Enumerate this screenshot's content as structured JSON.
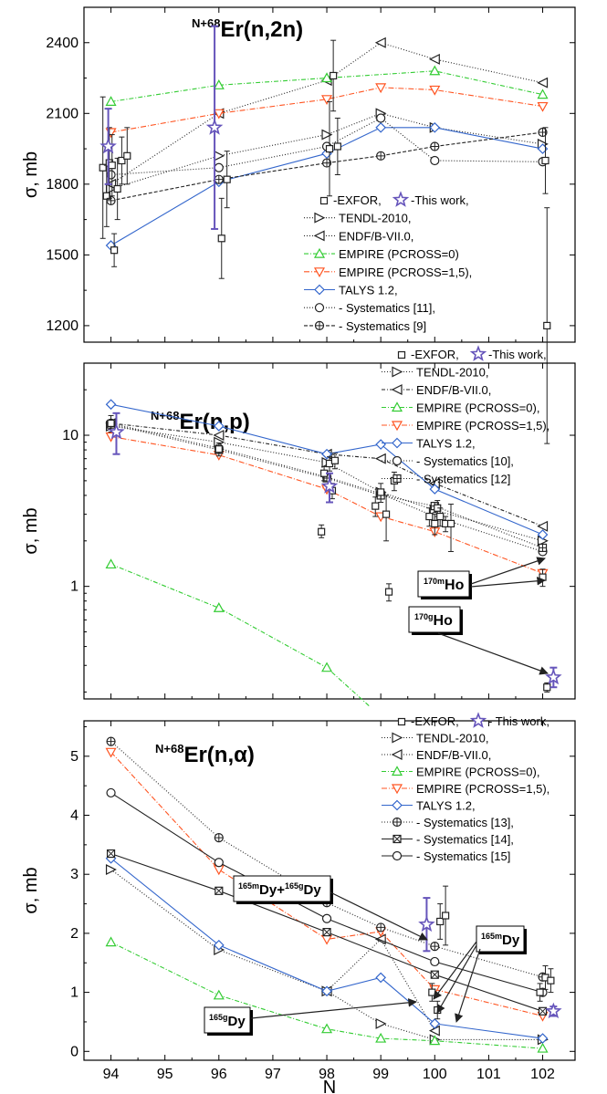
{
  "colors": {
    "black": "#222222",
    "green": "#33cc33",
    "red": "#ff5522",
    "blue": "#3366cc",
    "purple": "#6655bb"
  },
  "chart_data": [
    {
      "type": "line",
      "title_sup": "N+68",
      "title_main": "Er(n,2n)",
      "ylabel": "σ, mb",
      "xlabel": "",
      "xlim": [
        93.5,
        102.6
      ],
      "ylim": [
        1130,
        2550
      ],
      "yscale": "linear",
      "yticks": [
        1200,
        1500,
        1800,
        2100,
        2400
      ],
      "legend_position": "bottom-right",
      "series": [
        {
          "name": "TENDL-2010,",
          "color": "black",
          "marker": "tri-right",
          "dash": "1,2",
          "x": [
            94,
            96,
            98,
            99,
            100,
            102
          ],
          "y": [
            1780,
            1920,
            2010,
            2100,
            2040,
            1970
          ]
        },
        {
          "name": "ENDF/B-VII.0,",
          "color": "black",
          "marker": "tri-left",
          "dash": "1,2",
          "x": [
            94,
            96,
            98,
            99,
            100,
            102
          ],
          "y": [
            1800,
            2100,
            2240,
            2400,
            2330,
            2230
          ]
        },
        {
          "name": "EMPIRE (PCROSS=0)",
          "color": "green",
          "marker": "tri-up",
          "dash": "5,2,1,2",
          "x": [
            94,
            96,
            98,
            100,
            102
          ],
          "y": [
            2150,
            2220,
            2250,
            2280,
            2180
          ]
        },
        {
          "name": "EMPIRE (PCROSS=1,5),",
          "color": "red",
          "marker": "tri-down",
          "dash": "6,2,1,2",
          "x": [
            94,
            96,
            98,
            99,
            100,
            102
          ],
          "y": [
            2020,
            2100,
            2160,
            2210,
            2200,
            2130
          ]
        },
        {
          "name": "TALYS 1.2,",
          "color": "blue",
          "marker": "diamond",
          "dash": "",
          "x": [
            94,
            96,
            98,
            99,
            100,
            102
          ],
          "y": [
            1540,
            1810,
            1930,
            2040,
            2040,
            1950
          ]
        },
        {
          "name": "- Systematics [11],",
          "color": "black",
          "marker": "circle",
          "dash": "1,2",
          "x": [
            94,
            96,
            98,
            99,
            100,
            102
          ],
          "y": [
            1840,
            1870,
            1960,
            2080,
            1900,
            1895
          ]
        },
        {
          "name": "- Systematics [9]",
          "color": "black",
          "marker": "circleplus",
          "dash": "4,2",
          "x": [
            94,
            96,
            98,
            99,
            100,
            102
          ],
          "y": [
            1730,
            1820,
            1890,
            1920,
            1960,
            2020
          ]
        }
      ],
      "exfor": {
        "name": "-EXFOR,",
        "points": [
          {
            "x": 93.85,
            "y": 1870,
            "lo": 1570,
            "hi": 2170
          },
          {
            "x": 93.92,
            "y": 1750,
            "lo": 1620,
            "hi": 1880
          },
          {
            "x": 93.97,
            "y": 1890,
            "lo": 1740,
            "hi": 2040
          },
          {
            "x": 94.02,
            "y": 1880,
            "lo": 1750,
            "hi": 2010
          },
          {
            "x": 94.06,
            "y": 1520,
            "lo": 1450,
            "hi": 1590
          },
          {
            "x": 94.12,
            "y": 1780,
            "lo": 1650,
            "hi": 1910
          },
          {
            "x": 94.2,
            "y": 1900,
            "lo": 1800,
            "hi": 2000
          },
          {
            "x": 94.3,
            "y": 1920,
            "lo": 1800,
            "hi": 2040
          },
          {
            "x": 96.05,
            "y": 1570,
            "lo": 1400,
            "hi": 1740
          },
          {
            "x": 96.15,
            "y": 1820,
            "lo": 1700,
            "hi": 1940
          },
          {
            "x": 98.05,
            "y": 1950,
            "lo": 1750,
            "hi": 2150
          },
          {
            "x": 98.12,
            "y": 2260,
            "lo": 2110,
            "hi": 2410
          },
          {
            "x": 98.2,
            "y": 1960,
            "lo": 1840,
            "hi": 2080
          },
          {
            "x": 102.05,
            "y": 1900,
            "lo": 1760,
            "hi": 2040
          },
          {
            "x": 102.08,
            "y": 1200,
            "lo": 700,
            "hi": 1700
          }
        ]
      },
      "thiswork": {
        "name": "-This work,",
        "points": [
          {
            "x": 93.95,
            "y": 1960,
            "lo": 1800,
            "hi": 2120
          },
          {
            "x": 95.92,
            "y": 2040,
            "lo": 1610,
            "hi": 2470
          }
        ]
      }
    },
    {
      "type": "line",
      "title_sup": "N+68",
      "title_main": "Er(n,p)",
      "ylabel": "σ, mb",
      "xlabel": "",
      "xlim": [
        93.5,
        102.6
      ],
      "ylim": [
        0.18,
        30
      ],
      "yscale": "log",
      "yticks": [
        1,
        10
      ],
      "legend_position": "top-right",
      "series": [
        {
          "name": "TENDL-2010,",
          "color": "black",
          "marker": "tri-right",
          "dash": "1,2",
          "x": [
            94,
            96,
            98,
            99,
            100,
            102
          ],
          "y": [
            11.5,
            9.0,
            6.6,
            4.2,
            3.2,
            2.0
          ]
        },
        {
          "name": "ENDF/B-VII.0,",
          "color": "black",
          "marker": "tri-left",
          "dash": "4,2,1,2",
          "x": [
            94,
            96,
            98,
            99,
            100,
            102
          ],
          "y": [
            12.0,
            10.0,
            7.5,
            7.0,
            4.8,
            2.5
          ]
        },
        {
          "name": "EMPIRE (PCROSS=0),",
          "color": "green",
          "marker": "tri-up",
          "dash": "5,2,1,2",
          "x": [
            94,
            96,
            98,
            98.8
          ],
          "y": [
            1.4,
            0.72,
            0.29,
            0.16
          ]
        },
        {
          "name": "EMPIRE (PCROSS=1,5),",
          "color": "red",
          "marker": "tri-down",
          "dash": "6,2,1,2",
          "x": [
            94,
            96,
            98,
            99,
            100,
            102
          ],
          "y": [
            9.8,
            7.4,
            4.4,
            2.9,
            2.3,
            1.22
          ]
        },
        {
          "name": "TALYS 1.2,",
          "color": "blue",
          "marker": "diamond",
          "dash": "",
          "x": [
            94,
            96,
            98,
            99,
            100,
            102
          ],
          "y": [
            16,
            11.5,
            7.5,
            8.7,
            4.4,
            2.2
          ]
        },
        {
          "name": "- Systematics [10],",
          "color": "black",
          "marker": "circle",
          "dash": "1,2",
          "x": [
            94,
            96,
            98,
            99,
            100,
            102
          ],
          "y": [
            12.0,
            8.2,
            5.3,
            4.1,
            2.9,
            1.7
          ]
        },
        {
          "name": "- Systematics [12]",
          "color": "black",
          "marker": "squareplus",
          "dash": "1,2",
          "x": [
            94,
            96,
            98,
            99,
            100,
            102
          ],
          "y": [
            11.8,
            8.0,
            5.2,
            4.0,
            3.4,
            1.8
          ]
        }
      ],
      "exfor": {
        "name": "-EXFOR,",
        "points": [
          {
            "x": 94.0,
            "y": 12,
            "lo": 10.5,
            "hi": 13.5
          },
          {
            "x": 96.0,
            "y": 8.1,
            "lo": 7.3,
            "hi": 8.9
          },
          {
            "x": 97.9,
            "y": 2.3,
            "lo": 2.1,
            "hi": 2.55
          },
          {
            "x": 97.95,
            "y": 5.6,
            "lo": 5.0,
            "hi": 6.2
          },
          {
            "x": 98.05,
            "y": 6.5,
            "lo": 5.8,
            "hi": 7.2
          },
          {
            "x": 98.1,
            "y": 4.3,
            "lo": 3.8,
            "hi": 4.8
          },
          {
            "x": 98.15,
            "y": 6.8,
            "lo": 6.0,
            "hi": 7.6
          },
          {
            "x": 98.9,
            "y": 3.4,
            "lo": 2.9,
            "hi": 3.9
          },
          {
            "x": 99.0,
            "y": 4.2,
            "lo": 3.6,
            "hi": 4.8
          },
          {
            "x": 99.1,
            "y": 3.0,
            "lo": 2.0,
            "hi": 4.0
          },
          {
            "x": 99.15,
            "y": 0.92,
            "lo": 0.8,
            "hi": 1.04
          },
          {
            "x": 99.25,
            "y": 5.0,
            "lo": 4.3,
            "hi": 5.7
          },
          {
            "x": 99.9,
            "y": 2.9,
            "lo": 2.5,
            "hi": 3.3
          },
          {
            "x": 100.0,
            "y": 2.6,
            "lo": 2.2,
            "hi": 3.0
          },
          {
            "x": 100.05,
            "y": 3.3,
            "lo": 2.9,
            "hi": 3.7
          },
          {
            "x": 100.1,
            "y": 2.9,
            "lo": 2.5,
            "hi": 3.3
          },
          {
            "x": 100.2,
            "y": 2.6,
            "lo": 2.3,
            "hi": 2.9
          },
          {
            "x": 100.3,
            "y": 2.6,
            "lo": 1.7,
            "hi": 3.5
          },
          {
            "x": 102.0,
            "y": 1.15,
            "lo": 1.0,
            "hi": 1.3
          },
          {
            "x": 102.08,
            "y": 0.215,
            "lo": 0.2,
            "hi": 0.23
          }
        ]
      },
      "thiswork": {
        "name": "-This work,",
        "points": [
          {
            "x": 94.1,
            "y": 10.5,
            "lo": 7.5,
            "hi": 14
          },
          {
            "x": 98.05,
            "y": 4.6,
            "lo": 3.6,
            "hi": 5.6
          },
          {
            "x": 102.2,
            "y": 0.25,
            "lo": 0.215,
            "hi": 0.29
          }
        ]
      },
      "annotations": [
        {
          "id": "ho170m",
          "sup": "170m",
          "main": "Ho"
        },
        {
          "id": "ho170g",
          "sup": "170g",
          "main": "Ho"
        }
      ]
    },
    {
      "type": "line",
      "title_sup": "N+68",
      "title_main": "Er(n,α)",
      "ylabel": "σ, mb",
      "xlabel": "N",
      "xlim": [
        93.5,
        102.6
      ],
      "ylim": [
        -0.15,
        5.6
      ],
      "yscale": "linear",
      "yticks": [
        0,
        1,
        2,
        3,
        4,
        5
      ],
      "xticks": [
        94,
        95,
        96,
        97,
        98,
        99,
        100,
        101,
        102
      ],
      "legend_position": "top-right",
      "series": [
        {
          "name": "TENDL-2010,",
          "color": "black",
          "marker": "tri-right",
          "dash": "1,2",
          "x": [
            94,
            96,
            98,
            99,
            100,
            102
          ],
          "y": [
            3.08,
            1.72,
            1.02,
            0.47,
            0.2,
            0.2
          ]
        },
        {
          "name": "ENDF/B-VII.0,",
          "color": "black",
          "marker": "tri-left",
          "dash": "1,2",
          "x": [
            98,
            99,
            100
          ],
          "y": [
            1.02,
            1.9,
            0.35
          ]
        },
        {
          "name": "EMPIRE (PCROSS=0),",
          "color": "green",
          "marker": "tri-up",
          "dash": "5,2,1,2",
          "x": [
            94,
            96,
            98,
            99,
            100,
            102
          ],
          "y": [
            1.85,
            0.95,
            0.38,
            0.22,
            0.18,
            0.05
          ]
        },
        {
          "name": "EMPIRE (PCROSS=1,5),",
          "color": "red",
          "marker": "tri-down",
          "dash": "6,2,1,2",
          "x": [
            94,
            96,
            98,
            99,
            100,
            102
          ],
          "y": [
            5.07,
            3.08,
            1.9,
            2.03,
            1.05,
            0.6
          ]
        },
        {
          "name": "TALYS 1.2,",
          "color": "blue",
          "marker": "diamond",
          "dash": "",
          "x": [
            94,
            96,
            98,
            99,
            100,
            102
          ],
          "y": [
            3.27,
            1.8,
            1.02,
            1.25,
            0.47,
            0.22
          ]
        },
        {
          "name": "- Systematics [13],",
          "color": "black",
          "marker": "circleplus",
          "dash": "1,2",
          "x": [
            94,
            96,
            98,
            99,
            100,
            102
          ],
          "y": [
            5.25,
            3.62,
            2.52,
            2.1,
            1.78,
            1.26
          ]
        },
        {
          "name": "- Systematics [14],",
          "color": "black",
          "marker": "squarex",
          "dash": "",
          "x": [
            94,
            96,
            98,
            100,
            102
          ],
          "y": [
            3.35,
            2.72,
            2.02,
            1.3,
            0.68
          ]
        },
        {
          "name": "- Systematics [15]",
          "color": "black",
          "marker": "circle",
          "dash": "",
          "x": [
            94,
            96,
            98,
            100,
            102
          ],
          "y": [
            4.38,
            3.2,
            2.25,
            1.52,
            1.0
          ]
        }
      ],
      "exfor": {
        "name": "-EXFOR,",
        "points": [
          {
            "x": 99.95,
            "y": 1.0,
            "lo": 0.85,
            "hi": 1.15
          },
          {
            "x": 100.05,
            "y": 0.7,
            "lo": 0.55,
            "hi": 0.85
          },
          {
            "x": 100.1,
            "y": 2.2,
            "lo": 1.9,
            "hi": 2.5
          },
          {
            "x": 100.2,
            "y": 2.3,
            "lo": 1.8,
            "hi": 2.8
          },
          {
            "x": 101.95,
            "y": 1.0,
            "lo": 0.85,
            "hi": 1.15
          },
          {
            "x": 102.05,
            "y": 1.25,
            "lo": 1.05,
            "hi": 1.45
          },
          {
            "x": 102.15,
            "y": 1.2,
            "lo": 1.0,
            "hi": 1.4
          }
        ]
      },
      "thiswork": {
        "name": "- This work,",
        "points": [
          {
            "x": 99.85,
            "y": 2.15,
            "lo": 1.7,
            "hi": 2.6
          },
          {
            "x": 102.2,
            "y": 0.68,
            "lo": 0.6,
            "hi": 0.76
          }
        ]
      },
      "annotations": [
        {
          "id": "dysum",
          "parts": [
            {
              "sup": "165m"
            },
            {
              "t": "Dy+"
            },
            {
              "sup": "165g"
            },
            {
              "t": "Dy"
            }
          ]
        },
        {
          "id": "dy165m",
          "parts": [
            {
              "sup": "165m"
            },
            {
              "t": "Dy"
            }
          ]
        },
        {
          "id": "dy165g",
          "parts": [
            {
              "sup": "165g"
            },
            {
              "t": "Dy"
            }
          ]
        }
      ]
    }
  ]
}
